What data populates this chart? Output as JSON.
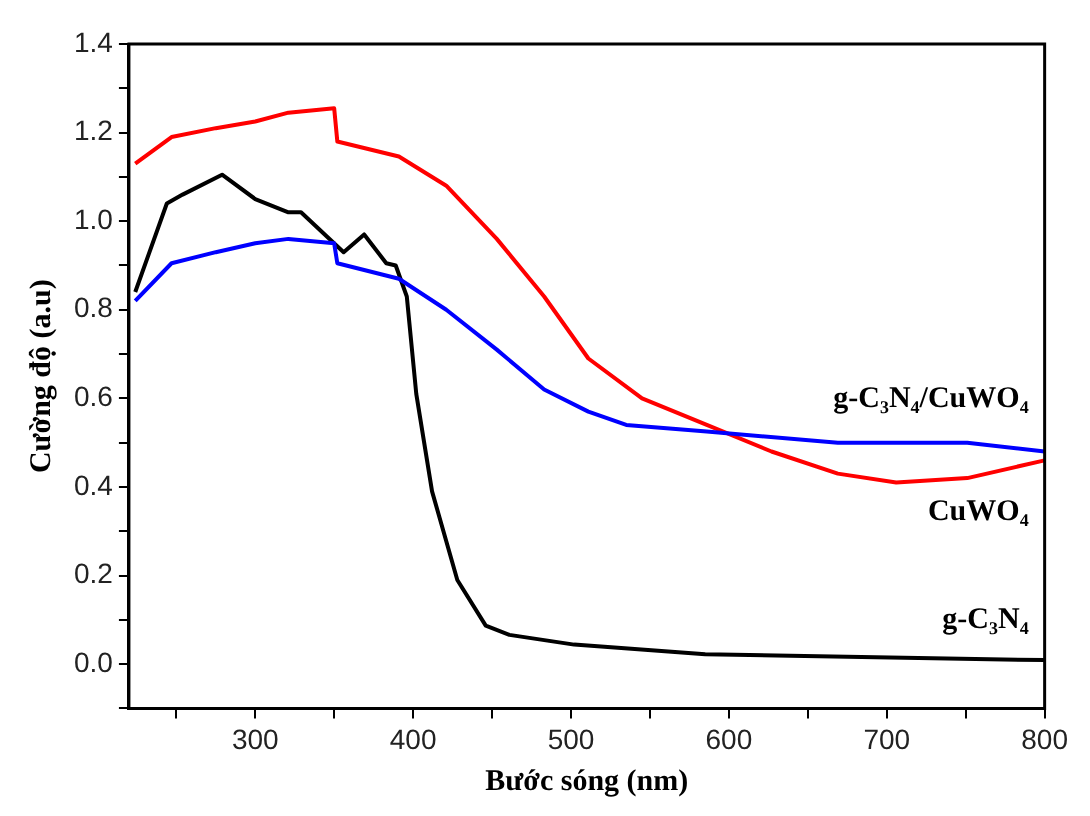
{
  "chart_data": {
    "type": "line",
    "xlabel": "Bước sóng (nm)",
    "ylabel": "Cường độ (a.u)",
    "xlim": [
      220,
      800
    ],
    "ylim": [
      -0.1,
      1.4
    ],
    "xticks": [
      {
        "value": 250,
        "label": null
      },
      300,
      {
        "value": 350,
        "label": null
      },
      400,
      {
        "value": 450,
        "label": null
      },
      500,
      {
        "value": 550,
        "label": null
      },
      600,
      {
        "value": 650,
        "label": null
      },
      700,
      {
        "value": 750,
        "label": null
      },
      800
    ],
    "yticks": [
      {
        "value": -0.1,
        "label": null
      },
      "0.0",
      {
        "value": 0.1,
        "label": null
      },
      0.2,
      {
        "value": 0.3,
        "label": null
      },
      0.4,
      {
        "value": 0.5,
        "label": null
      },
      0.6,
      {
        "value": 0.7,
        "label": null
      },
      0.8,
      {
        "value": 0.9,
        "label": null
      },
      "1.0",
      {
        "value": 1.1,
        "label": null
      },
      1.2,
      {
        "value": 1.3,
        "label": null
      },
      1.4
    ],
    "grid": false,
    "legend": false,
    "marker": "none",
    "line_style": "solid",
    "series": [
      {
        "name": "g-C₃N₄/CuWO₄",
        "color": "#0000ff",
        "x": [
          224,
          247,
          275,
          300,
          321,
          350,
          352,
          391,
          421,
          453,
          483,
          511,
          535,
          586,
          669,
          751,
          800
        ],
        "values": [
          0.82,
          0.905,
          0.93,
          0.95,
          0.96,
          0.95,
          0.905,
          0.87,
          0.8,
          0.71,
          0.62,
          0.57,
          0.54,
          0.525,
          0.5,
          0.5,
          0.48
        ]
      },
      {
        "name": "CuWO₄",
        "color": "#ff0000",
        "x": [
          224,
          247,
          275,
          300,
          321,
          350,
          352,
          391,
          421,
          453,
          483,
          511,
          545,
          586,
          627,
          669,
          706,
          751,
          800
        ],
        "values": [
          1.13,
          1.19,
          1.21,
          1.225,
          1.245,
          1.255,
          1.18,
          1.146,
          1.08,
          0.96,
          0.83,
          0.69,
          0.6,
          0.54,
          0.48,
          0.43,
          0.41,
          0.42,
          0.46
        ]
      },
      {
        "name": "g-C₃N₄",
        "color": "#000000",
        "x": [
          224,
          244,
          254,
          279,
          300,
          321,
          329,
          356,
          369,
          383,
          389,
          396,
          402,
          412,
          428,
          446,
          461,
          502,
          585,
          800
        ],
        "values": [
          0.84,
          1.04,
          1.06,
          1.105,
          1.05,
          1.02,
          1.02,
          0.93,
          0.97,
          0.905,
          0.9,
          0.83,
          0.61,
          0.39,
          0.19,
          0.087,
          0.066,
          0.044,
          0.022,
          0.009
        ]
      }
    ]
  }
}
